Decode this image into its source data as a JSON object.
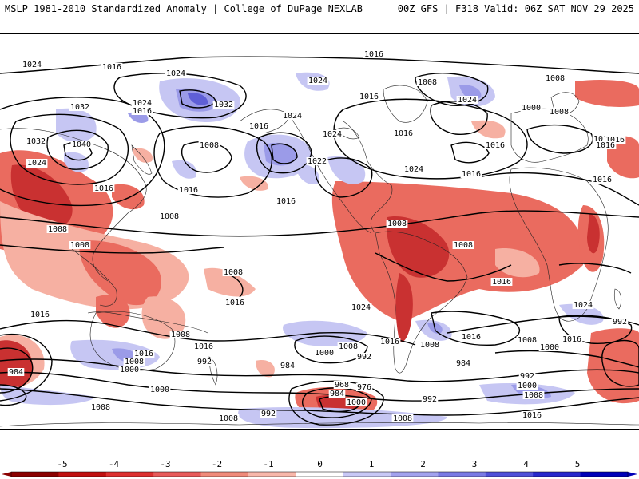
{
  "header": {
    "title": "MSLP 1981-2010 Standardized Anomaly | College of DuPage NEXLAB",
    "run_info": "00Z GFS | F318 Valid: 06Z SAT NOV 29 2025"
  },
  "isobars": [
    {
      "id": "iso-1016-north",
      "label": "1016"
    },
    {
      "id": "iso-1024-nw",
      "label": "1024"
    },
    {
      "id": "iso-1016-pacw",
      "label": "1016"
    },
    {
      "id": "iso-1032-asia",
      "label": "1032"
    },
    {
      "id": "iso-1024-siberia",
      "label": "1024"
    },
    {
      "id": "iso-1016-siberia",
      "label": "1016"
    },
    {
      "id": "iso-1040-asia",
      "label": "1040"
    },
    {
      "id": "iso-1032-asia2",
      "label": "1032"
    },
    {
      "id": "iso-1024-china",
      "label": "1024"
    },
    {
      "id": "iso-1032-alaska",
      "label": "1032"
    },
    {
      "id": "iso-1024-bering",
      "label": "1024"
    },
    {
      "id": "iso-1008-npac",
      "label": "1008"
    },
    {
      "id": "iso-1016-npac",
      "label": "1016"
    },
    {
      "id": "iso-1024-canada",
      "label": "1024"
    },
    {
      "id": "iso-1024-greenland",
      "label": "1024"
    },
    {
      "id": "iso-1016-hudson",
      "label": "1016"
    },
    {
      "id": "iso-1008-greenland",
      "label": "1008"
    },
    {
      "id": "iso-1024-iceland",
      "label": "1024"
    },
    {
      "id": "iso-1016-natl",
      "label": "1016"
    },
    {
      "id": "iso-1000-natl",
      "label": "1000"
    },
    {
      "id": "iso-1008-europe",
      "label": "1008"
    },
    {
      "id": "iso-1008-arctic",
      "label": "1008"
    },
    {
      "id": "iso-1016-europe",
      "label": "1016"
    },
    {
      "id": "iso-1016-scand",
      "label": "1016"
    },
    {
      "id": "iso-1022-us",
      "label": "1022"
    },
    {
      "id": "iso-1024-us",
      "label": "1024"
    },
    {
      "id": "iso-1016-atl",
      "label": "1016"
    },
    {
      "id": "iso-1016-wpac",
      "label": "1016"
    },
    {
      "id": "iso-1016-epac",
      "label": "1016"
    },
    {
      "id": "iso-1016-med",
      "label": "1016"
    },
    {
      "id": "iso-1024-sib-east",
      "label": "1024"
    },
    {
      "id": "iso-1008-india",
      "label": "1008"
    },
    {
      "id": "iso-1008-seasia",
      "label": "1008"
    },
    {
      "id": "iso-1008-wpac",
      "label": "1008"
    },
    {
      "id": "iso-1008-cpac",
      "label": "1008"
    },
    {
      "id": "iso-1008-samerica",
      "label": "1008"
    },
    {
      "id": "iso-1008-africa",
      "label": "1008"
    },
    {
      "id": "iso-1016-satl",
      "label": "1016"
    },
    {
      "id": "iso-1016-indian",
      "label": "1016"
    },
    {
      "id": "iso-1024-spac",
      "label": "1024"
    },
    {
      "id": "iso-1024-indian",
      "label": "1024"
    },
    {
      "id": "iso-1016-aus",
      "label": "1016"
    },
    {
      "id": "iso-1008-aus",
      "label": "1008"
    },
    {
      "id": "iso-1016-tasman",
      "label": "1016"
    },
    {
      "id": "iso-1008-tasman",
      "label": "1008"
    },
    {
      "id": "iso-1000-spac",
      "label": "1000"
    },
    {
      "id": "iso-984-spac",
      "label": "984"
    },
    {
      "id": "iso-1000-so1",
      "label": "1000"
    },
    {
      "id": "iso-992-so1",
      "label": "992"
    },
    {
      "id": "iso-1008-so1",
      "label": "1008"
    },
    {
      "id": "iso-1016-scp",
      "label": "1016"
    },
    {
      "id": "iso-1000-so2",
      "label": "1000"
    },
    {
      "id": "iso-1008-so2",
      "label": "1008"
    },
    {
      "id": "iso-992-so2",
      "label": "992"
    },
    {
      "id": "iso-984-so2",
      "label": "984"
    },
    {
      "id": "iso-968-low",
      "label": "968"
    },
    {
      "id": "iso-976-low",
      "label": "976"
    },
    {
      "id": "iso-984-low",
      "label": "984"
    },
    {
      "id": "iso-1000-sa",
      "label": "1000"
    },
    {
      "id": "iso-1008-sa",
      "label": "1008"
    },
    {
      "id": "iso-1016-sa",
      "label": "1016"
    },
    {
      "id": "iso-1016-satl2",
      "label": "1016"
    },
    {
      "id": "iso-984-satl",
      "label": "984"
    },
    {
      "id": "iso-992-satl",
      "label": "992"
    },
    {
      "id": "iso-1000-sind",
      "label": "1000"
    },
    {
      "id": "iso-1008-sind",
      "label": "1008"
    },
    {
      "id": "iso-1016-sind",
      "label": "1016"
    },
    {
      "id": "iso-992-sind",
      "label": "992"
    },
    {
      "id": "iso-1000-so3",
      "label": "1000"
    },
    {
      "id": "iso-1008-so3",
      "label": "1008"
    },
    {
      "id": "iso-1008-so4",
      "label": "1008"
    },
    {
      "id": "iso-992-so3",
      "label": "992"
    },
    {
      "id": "iso-1016-so3",
      "label": "1016"
    },
    {
      "id": "iso-1008-so5",
      "label": "1008"
    },
    {
      "id": "iso-992-nz",
      "label": "992"
    },
    {
      "id": "iso-1024-sind2",
      "label": "1024"
    },
    {
      "id": "iso-1016-seaus",
      "label": "1016"
    },
    {
      "id": "iso-1016-africa",
      "label": "1016"
    },
    {
      "id": "iso-1016-wafr",
      "label": "1016"
    },
    {
      "id": "iso-1008-safr",
      "label": "1008"
    }
  ],
  "colorbar": {
    "ticks": [
      "-5",
      "-4",
      "-3",
      "-2",
      "-1",
      "0",
      "1",
      "2",
      "3",
      "4",
      "5"
    ],
    "colors": [
      "#8b0000",
      "#c01010",
      "#dd2f2f",
      "#e85a5a",
      "#f08a7a",
      "#f8b7aa",
      "#ffffff",
      "#c8c8f6",
      "#a2a2ee",
      "#7a7ae4",
      "#5050d8",
      "#2828cc",
      "#0000b8"
    ]
  },
  "anomaly_colors": {
    "strong_positive": "#c93131",
    "positive": "#ea6b5f",
    "weak_positive": "#f6b0a2",
    "weak_negative": "#c6c6f3",
    "negative": "#9b9be8",
    "strong_negative": "#5f5fd6"
  }
}
